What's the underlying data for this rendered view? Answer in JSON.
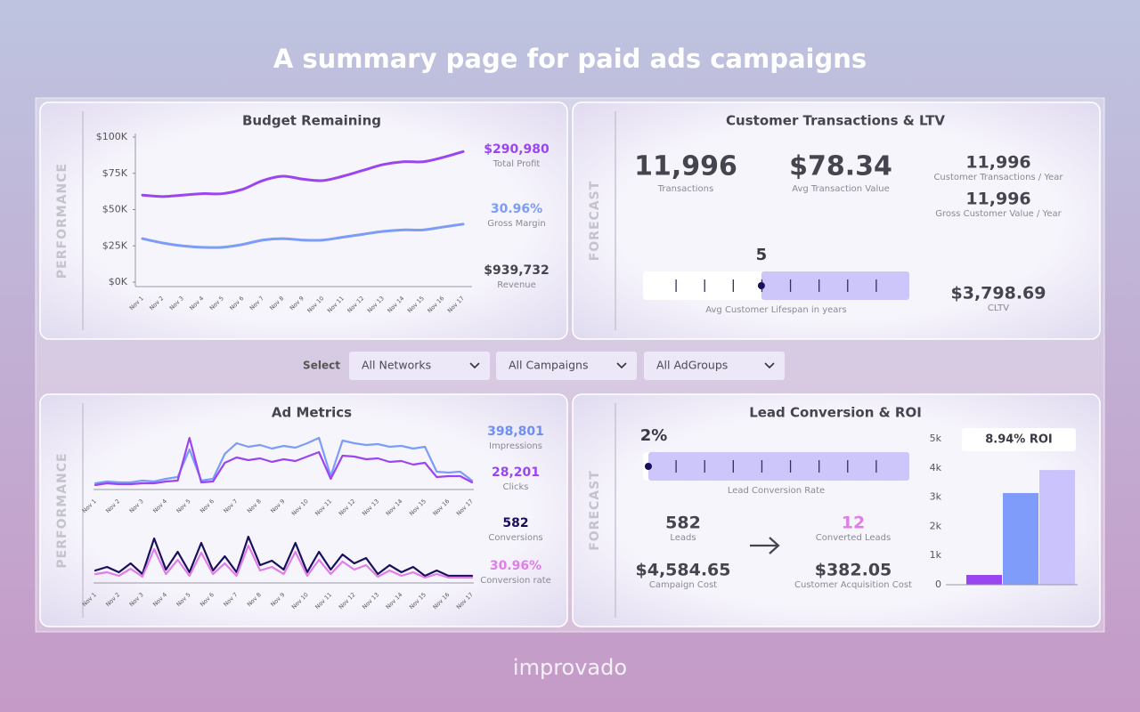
{
  "title": "A summary page for paid ads campaigns",
  "brand": "improvado",
  "filters": {
    "label": "Select",
    "options": [
      "All Networks",
      "All Campaigns",
      "All AdGroups"
    ]
  },
  "panels": [
    {
      "title": "Budget Remaining",
      "side_label": "PERFORMANCE",
      "stats": [
        {
          "value": "$290,980",
          "label": "Total Profit",
          "color": "#9b45f0"
        },
        {
          "value": "30.96%",
          "label": "Gross Margin",
          "color": "#7b9cf7"
        },
        {
          "value": "$939,732",
          "label": "Revenue",
          "color": "#45454f"
        }
      ]
    },
    {
      "title": "Customer Transactions & LTV",
      "side_label": "FORECAST",
      "stats": [
        {
          "value": "11,996",
          "label": "Transactions",
          "color": "#45454f"
        },
        {
          "value": "$78.34",
          "label": "Avg Transaction Value",
          "color": "#45454f"
        },
        {
          "value": "11,996",
          "label": "Customer Transactions / Year",
          "color": "#45454f"
        },
        {
          "value": "11,996",
          "label": "Gross Customer Value / Year",
          "color": "#45454f"
        },
        {
          "value": "$3,798.69",
          "label": "CLTV",
          "color": "#45454f"
        }
      ]
    },
    {
      "title": "Ad Metrics",
      "side_label": "PERFORMANCE",
      "stats": [
        {
          "value": "398,801",
          "label": "Impressions",
          "color": "#6f8ff0"
        },
        {
          "value": "28,201",
          "label": "Clicks",
          "color": "#9b45f0"
        },
        {
          "value": "582",
          "label": "Conversions",
          "color": "#1a0f5c"
        },
        {
          "value": "30.96%",
          "label": "Conversion rate",
          "color": "#e07ee8"
        }
      ]
    },
    {
      "title": "Lead Conversion & ROI",
      "side_label": "FORECAST",
      "stats": [
        {
          "value": "582",
          "label": "Leads",
          "color": "#45454f"
        },
        {
          "value": "12",
          "label": "Converted Leads",
          "color": "#e07ee8"
        },
        {
          "value": "$4,584.65",
          "label": "Campaign Cost",
          "color": "#45454f"
        },
        {
          "value": "$382.05",
          "label": "Customer Acquisition Cost",
          "color": "#45454f"
        }
      ]
    }
  ],
  "chart_data": [
    {
      "type": "line",
      "smooth": true,
      "categories": [
        "Nov 1",
        "Nov 2",
        "Nov 3",
        "Nov 4",
        "Nov 5",
        "Nov 6",
        "Nov 7",
        "Nov 8",
        "Nov 9",
        "Nov 10",
        "Nov 11",
        "Nov 12",
        "Nov 13",
        "Nov 14",
        "Nov 15",
        "Nov 16",
        "Nov 17"
      ],
      "series": [
        {
          "color": "#9b45f0",
          "values": [
            60000,
            59000,
            60000,
            61000,
            61000,
            64000,
            70000,
            73000,
            71000,
            70000,
            73000,
            77000,
            81000,
            83000,
            83000,
            86000,
            90000
          ]
        },
        {
          "color": "#7b9cf7",
          "values": [
            30000,
            27000,
            25000,
            24000,
            24000,
            26000,
            29000,
            30000,
            29000,
            29000,
            31000,
            33000,
            35000,
            36000,
            36000,
            38000,
            40000
          ]
        }
      ],
      "ylim": [
        0,
        100000
      ],
      "yticks": [
        {
          "value": 0,
          "label": "$0K"
        },
        {
          "value": 25000,
          "label": "$25K"
        },
        {
          "value": 50000,
          "label": "$50K"
        },
        {
          "value": 75000,
          "label": "$75K"
        },
        {
          "value": 100000,
          "label": "$100K"
        }
      ]
    },
    {
      "type": "gauge",
      "value": 5,
      "label": "Avg Customer Lifespan in years",
      "xlim": [
        1,
        10
      ]
    },
    {
      "type": "line",
      "smooth": false,
      "categories": [
        "Nov 1",
        null,
        "Nov 2",
        null,
        "Nov 3",
        null,
        "Nov 4",
        null,
        "Nov 5",
        null,
        "Nov 6",
        null,
        "Nov 7",
        null,
        "Nov 8",
        null,
        "Nov 9",
        null,
        "Nov 10",
        null,
        "Nov 11",
        null,
        "Nov 12",
        null,
        "Nov 13",
        null,
        "Nov 14",
        null,
        "Nov 15",
        null,
        "Nov 16",
        null,
        "Nov 17"
      ],
      "series": [
        {
          "color": "#7b9cf7",
          "values": [
            7,
            9,
            8,
            8,
            10,
            9,
            12,
            14,
            45,
            10,
            12,
            40,
            52,
            48,
            50,
            46,
            49,
            47,
            52,
            58,
            15,
            55,
            52,
            50,
            51,
            48,
            49,
            46,
            48,
            20,
            19,
            20,
            10
          ]
        },
        {
          "color": "#9b45f0",
          "values": [
            5,
            7,
            6,
            6,
            7,
            7,
            9,
            10,
            58,
            8,
            9,
            30,
            36,
            33,
            35,
            31,
            34,
            32,
            37,
            42,
            12,
            38,
            37,
            34,
            35,
            31,
            32,
            28,
            30,
            14,
            15,
            15,
            8
          ]
        }
      ],
      "ylim": [
        0,
        60
      ]
    },
    {
      "type": "line",
      "smooth": false,
      "categories": [
        "Nov 1",
        null,
        "Nov 2",
        null,
        "Nov 3",
        null,
        "Nov 4",
        null,
        "Nov 5",
        null,
        "Nov 6",
        null,
        "Nov 7",
        null,
        "Nov 8",
        null,
        "Nov 9",
        null,
        "Nov 10",
        null,
        "Nov 11",
        null,
        "Nov 12",
        null,
        "Nov 13",
        null,
        "Nov 14",
        null,
        "Nov 15",
        null,
        "Nov 16",
        null,
        "Nov 17"
      ],
      "series": [
        {
          "color": "#1a0f5c",
          "values": [
            14,
            18,
            12,
            22,
            10,
            50,
            15,
            35,
            12,
            45,
            14,
            30,
            12,
            52,
            20,
            25,
            15,
            45,
            12,
            35,
            15,
            32,
            22,
            28,
            10,
            20,
            12,
            18,
            8,
            14,
            8,
            8,
            8
          ]
        },
        {
          "color": "#e07ee8",
          "values": [
            10,
            12,
            8,
            16,
            7,
            38,
            10,
            26,
            8,
            34,
            10,
            22,
            8,
            42,
            14,
            18,
            10,
            35,
            8,
            26,
            10,
            24,
            15,
            20,
            7,
            14,
            8,
            12,
            6,
            10,
            6,
            6,
            6
          ]
        }
      ],
      "ylim": [
        0,
        60
      ]
    },
    {
      "type": "gauge",
      "value": 2,
      "value_label": "2%",
      "label": "Lead Conversion Rate",
      "xlim": [
        0,
        100
      ]
    },
    {
      "type": "bar",
      "annotation": "8.94% ROI",
      "categories": [
        null,
        null,
        null
      ],
      "values": [
        335,
        3140,
        3930
      ],
      "colors": [
        "#9b45f0",
        "#7f9cfb",
        "#cbc3fb"
      ],
      "ylim": [
        0,
        5000
      ],
      "yticks": [
        0,
        {
          "value": 1000,
          "label": "1k"
        },
        {
          "value": 2000,
          "label": "2k"
        },
        {
          "value": 3000,
          "label": "3k"
        },
        {
          "value": 4000,
          "label": "4k"
        },
        {
          "value": 5000,
          "label": "5k"
        }
      ]
    }
  ]
}
